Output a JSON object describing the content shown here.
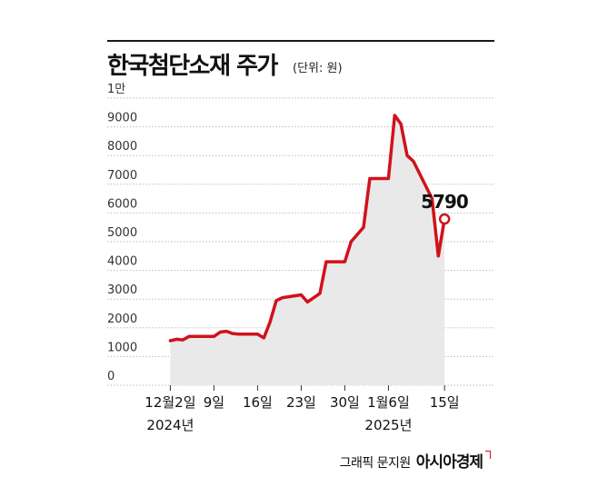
{
  "header": {
    "title": "한국첨단소재 주가",
    "unit": "(단위: 원)"
  },
  "footer": {
    "credit": "그래픽 문지원",
    "brand": "아시아경제"
  },
  "colors": {
    "line": "#d0121b",
    "area": "#e9e9e9",
    "grid": "#bdbdbd",
    "text": "#111111"
  },
  "chart_data": {
    "type": "area",
    "title": "한국첨단소재 주가",
    "ylabel": "(단위: 원)",
    "ylim": [
      0,
      10000
    ],
    "y_ticks": [
      {
        "value": 0,
        "label": "0"
      },
      {
        "value": 1000,
        "label": "1000"
      },
      {
        "value": 2000,
        "label": "2000"
      },
      {
        "value": 3000,
        "label": "3000"
      },
      {
        "value": 4000,
        "label": "4000"
      },
      {
        "value": 5000,
        "label": "5000"
      },
      {
        "value": 6000,
        "label": "6000"
      },
      {
        "value": 7000,
        "label": "7000"
      },
      {
        "value": 8000,
        "label": "8000"
      },
      {
        "value": 9000,
        "label": "9000"
      },
      {
        "value": 10000,
        "label": "1만"
      }
    ],
    "x_ticks": [
      {
        "date": "2024-12-02",
        "label": "12월2일",
        "sublabel": "2024년"
      },
      {
        "date": "2024-12-09",
        "label": "9일",
        "sublabel": ""
      },
      {
        "date": "2024-12-16",
        "label": "16일",
        "sublabel": ""
      },
      {
        "date": "2024-12-23",
        "label": "23일",
        "sublabel": ""
      },
      {
        "date": "2024-12-30",
        "label": "30일",
        "sublabel": ""
      },
      {
        "date": "2025-01-06",
        "label": "1월6일",
        "sublabel": "2025년"
      },
      {
        "date": "2025-01-15",
        "label": "15일",
        "sublabel": ""
      }
    ],
    "series": [
      {
        "points": [
          {
            "x": "2024-12-02",
            "y": 1550
          },
          {
            "x": "2024-12-03",
            "y": 1600
          },
          {
            "x": "2024-12-04",
            "y": 1580
          },
          {
            "x": "2024-12-05",
            "y": 1700
          },
          {
            "x": "2024-12-06",
            "y": 1700
          },
          {
            "x": "2024-12-09",
            "y": 1700
          },
          {
            "x": "2024-12-10",
            "y": 1850
          },
          {
            "x": "2024-12-11",
            "y": 1880
          },
          {
            "x": "2024-12-12",
            "y": 1800
          },
          {
            "x": "2024-12-13",
            "y": 1780
          },
          {
            "x": "2024-12-16",
            "y": 1780
          },
          {
            "x": "2024-12-17",
            "y": 1650
          },
          {
            "x": "2024-12-18",
            "y": 2200
          },
          {
            "x": "2024-12-19",
            "y": 2950
          },
          {
            "x": "2024-12-20",
            "y": 3050
          },
          {
            "x": "2024-12-23",
            "y": 3150
          },
          {
            "x": "2024-12-24",
            "y": 2900
          },
          {
            "x": "2024-12-26",
            "y": 3200
          },
          {
            "x": "2024-12-27",
            "y": 4300
          },
          {
            "x": "2024-12-30",
            "y": 4300
          },
          {
            "x": "2024-12-31",
            "y": 5000
          },
          {
            "x": "2025-01-02",
            "y": 5500
          },
          {
            "x": "2025-01-03",
            "y": 7200
          },
          {
            "x": "2025-01-06",
            "y": 7200
          },
          {
            "x": "2025-01-07",
            "y": 9400
          },
          {
            "x": "2025-01-08",
            "y": 9100
          },
          {
            "x": "2025-01-09",
            "y": 8000
          },
          {
            "x": "2025-01-10",
            "y": 7800
          },
          {
            "x": "2025-01-13",
            "y": 6500
          },
          {
            "x": "2025-01-14",
            "y": 4500
          },
          {
            "x": "2025-01-15",
            "y": 5790
          }
        ]
      }
    ],
    "annotations": [
      {
        "x": "2025-01-15",
        "y": 5790,
        "text": "5790"
      }
    ],
    "grid": true,
    "legend": "none"
  }
}
